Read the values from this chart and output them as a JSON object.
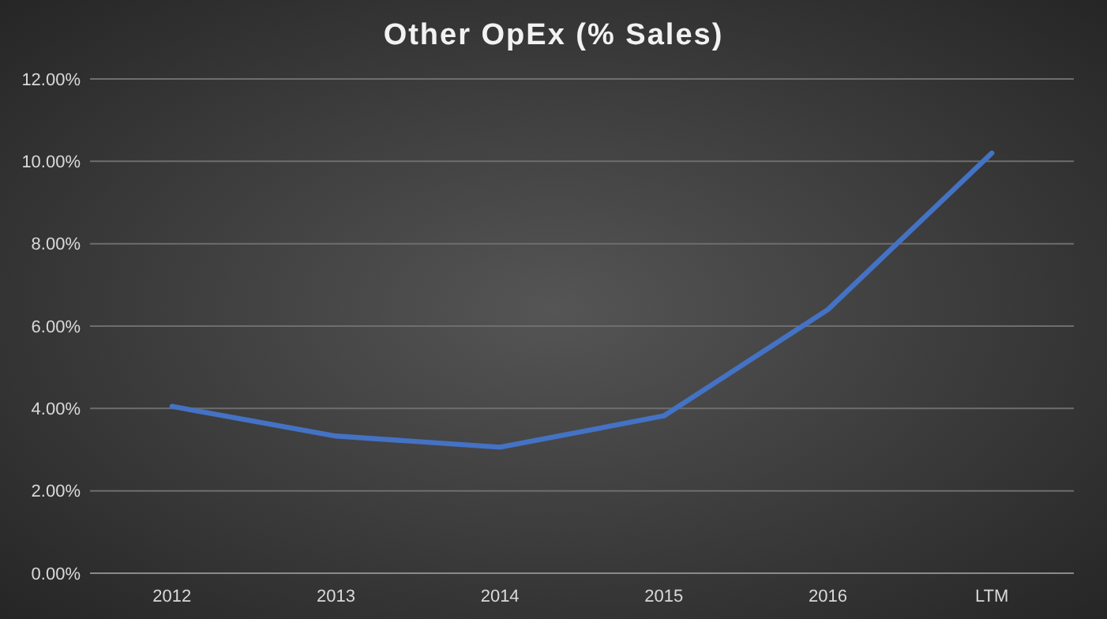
{
  "chart_data": {
    "type": "line",
    "title": "Other OpEx (% Sales)",
    "categories": [
      "2012",
      "2013",
      "2014",
      "2015",
      "2016",
      "LTM"
    ],
    "series": [
      {
        "color": "#4472c4",
        "values": [
          4.05,
          3.33,
          3.06,
          3.82,
          6.4,
          10.2
        ]
      }
    ],
    "ylim": [
      0,
      12
    ],
    "yticks": [
      {
        "value": 0,
        "label": "0.00%"
      },
      {
        "value": 2,
        "label": "2.00%"
      },
      {
        "value": 4,
        "label": "4.00%"
      },
      {
        "value": 6,
        "label": "6.00%"
      },
      {
        "value": 8,
        "label": "8.00%"
      },
      {
        "value": 10,
        "label": "10.00%"
      },
      {
        "value": 12,
        "label": "12.00%"
      }
    ],
    "grid": "y",
    "marker": "none",
    "line_style": "solid"
  }
}
